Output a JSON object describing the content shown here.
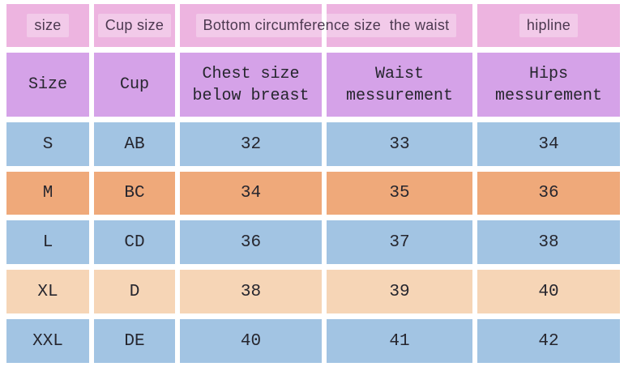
{
  "colors": {
    "page_bg": "#ffffff",
    "header_pink": "#edb4e0",
    "header_highlight": "rgba(255,255,255,0.30)",
    "subheader_purple": "#d5a2e8",
    "row_blue": "#a2c4e3",
    "row_orange": "#efa97a",
    "row_peach": "#f6d5b6",
    "header_text": "#4c3950",
    "body_text": "#26262e"
  },
  "table": {
    "header": {
      "size": "size",
      "cup_size": "Cup size",
      "bottom_waist": "Bottom circumference size  the waist",
      "hipline": "hipline"
    },
    "subheader": {
      "size": "Size",
      "cup": "Cup",
      "chest_line1": "Chest size",
      "chest_line2": "below breast",
      "waist_line1": "Waist",
      "waist_line2": "messurement",
      "hips_line1": "Hips",
      "hips_line2": "messurement"
    },
    "rows": [
      {
        "size": "S",
        "cup": "AB",
        "chest": "32",
        "waist": "33",
        "hips": "34"
      },
      {
        "size": "M",
        "cup": "BC",
        "chest": "34",
        "waist": "35",
        "hips": "36"
      },
      {
        "size": "L",
        "cup": "CD",
        "chest": "36",
        "waist": "37",
        "hips": "38"
      },
      {
        "size": "XL",
        "cup": "D",
        "chest": "38",
        "waist": "39",
        "hips": "40"
      },
      {
        "size": "XXL",
        "cup": "DE",
        "chest": "40",
        "waist": "41",
        "hips": "42"
      }
    ]
  },
  "chart_data": {
    "type": "table",
    "title": "Bra size chart",
    "header_top": [
      "size",
      "Cup size",
      "Bottom circumference size  the waist",
      "hipline"
    ],
    "columns": [
      "Size",
      "Cup",
      "Chest size below breast",
      "Waist messurement",
      "Hips messurement"
    ],
    "rows": [
      [
        "S",
        "AB",
        32,
        33,
        34
      ],
      [
        "M",
        "BC",
        34,
        35,
        36
      ],
      [
        "L",
        "CD",
        36,
        37,
        38
      ],
      [
        "XL",
        "D",
        38,
        39,
        40
      ],
      [
        "XXL",
        "DE",
        40,
        41,
        42
      ]
    ],
    "row_colors": [
      "#a2c4e3",
      "#efa97a",
      "#a2c4e3",
      "#f6d5b6",
      "#a2c4e3"
    ]
  }
}
